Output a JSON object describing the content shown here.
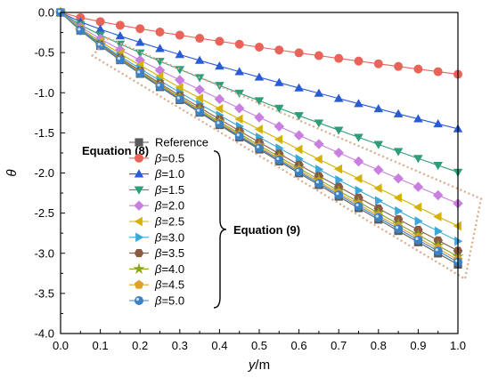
{
  "chart_data": {
    "type": "line",
    "xlabel_var": "y",
    "xlabel_unit": "/m",
    "ylabel": "θ",
    "xlim": [
      0.0,
      1.0
    ],
    "ylim": [
      -4.0,
      0.0
    ],
    "xticks": [
      "0.0",
      "0.1",
      "0.2",
      "0.3",
      "0.4",
      "0.5",
      "0.6",
      "0.7",
      "0.8",
      "0.9",
      "1.0"
    ],
    "yticks": [
      "0.0",
      "-0.5",
      "-1.0",
      "-1.5",
      "-2.0",
      "-2.5",
      "-3.0",
      "-3.5",
      "-4.0"
    ],
    "x": [
      0.0,
      0.05,
      0.1,
      0.15,
      0.2,
      0.25,
      0.3,
      0.35,
      0.4,
      0.45,
      0.5,
      0.55,
      0.6,
      0.65,
      0.7,
      0.75,
      0.8,
      0.85,
      0.9,
      0.95,
      1.0
    ],
    "series": [
      {
        "name": "Reference",
        "color": "#5a5a5a",
        "marker": "square",
        "end": -3.14
      },
      {
        "name": "β=0.5",
        "color": "#e8645a",
        "marker": "circle",
        "end": -0.77
      },
      {
        "name": "β=1.0",
        "color": "#2a5bd7",
        "marker": "triangle-up",
        "end": -1.45
      },
      {
        "name": "β=1.5",
        "color": "#2e9d78",
        "marker": "triangle-down",
        "end": -1.99
      },
      {
        "name": "β=2.0",
        "color": "#c97fe0",
        "marker": "diamond",
        "end": -2.38
      },
      {
        "name": "β=2.5",
        "color": "#d4b106",
        "marker": "triangle-left",
        "end": -2.66
      },
      {
        "name": "β=3.0",
        "color": "#3aa8d8",
        "marker": "triangle-right",
        "end": -2.85
      },
      {
        "name": "β=3.5",
        "color": "#8a5a44",
        "marker": "hexagon",
        "end": -2.97
      },
      {
        "name": "β=4.0",
        "color": "#8aa31a",
        "marker": "star",
        "end": -3.04
      },
      {
        "name": "β=4.5",
        "color": "#e0a02a",
        "marker": "pentagon",
        "end": -3.08
      },
      {
        "name": "β=5.0",
        "color": "#3c82c4",
        "marker": "sphere",
        "end": -3.11
      }
    ],
    "annotations": {
      "equation8": "Equation (8)",
      "equation9": "Equation (9)"
    },
    "box_color": "#d9a98a"
  }
}
